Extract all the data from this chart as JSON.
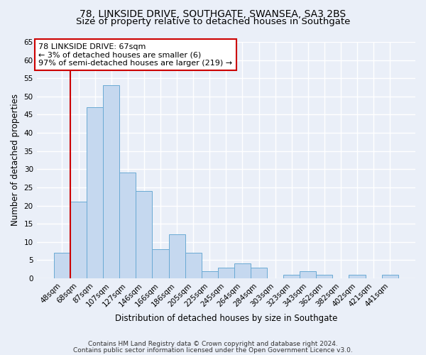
{
  "title1": "78, LINKSIDE DRIVE, SOUTHGATE, SWANSEA, SA3 2BS",
  "title2": "Size of property relative to detached houses in Southgate",
  "xlabel": "Distribution of detached houses by size in Southgate",
  "ylabel": "Number of detached properties",
  "bar_labels": [
    "48sqm",
    "68sqm",
    "87sqm",
    "107sqm",
    "127sqm",
    "146sqm",
    "166sqm",
    "186sqm",
    "205sqm",
    "225sqm",
    "245sqm",
    "264sqm",
    "284sqm",
    "303sqm",
    "323sqm",
    "343sqm",
    "362sqm",
    "382sqm",
    "402sqm",
    "421sqm",
    "441sqm"
  ],
  "bar_values": [
    7,
    21,
    47,
    53,
    29,
    24,
    8,
    12,
    7,
    2,
    3,
    4,
    3,
    0,
    1,
    2,
    1,
    0,
    1,
    0,
    1
  ],
  "bar_color": "#c5d8ef",
  "bar_edge_color": "#6aaad4",
  "property_label": "78 LINKSIDE DRIVE: 67sqm",
  "annotation_line1": "← 3% of detached houses are smaller (6)",
  "annotation_line2": "97% of semi-detached houses are larger (219) →",
  "vline_color": "#cc0000",
  "box_edge_color": "#cc0000",
  "ylim": [
    0,
    65
  ],
  "yticks": [
    0,
    5,
    10,
    15,
    20,
    25,
    30,
    35,
    40,
    45,
    50,
    55,
    60,
    65
  ],
  "footer_line1": "Contains HM Land Registry data © Crown copyright and database right 2024.",
  "footer_line2": "Contains public sector information licensed under the Open Government Licence v3.0.",
  "background_color": "#eaeff8",
  "grid_color": "#ffffff",
  "title1_fontsize": 10,
  "title2_fontsize": 9.5,
  "annotation_fontsize": 8,
  "axis_label_fontsize": 8.5,
  "tick_fontsize": 7.5,
  "footer_fontsize": 6.5
}
